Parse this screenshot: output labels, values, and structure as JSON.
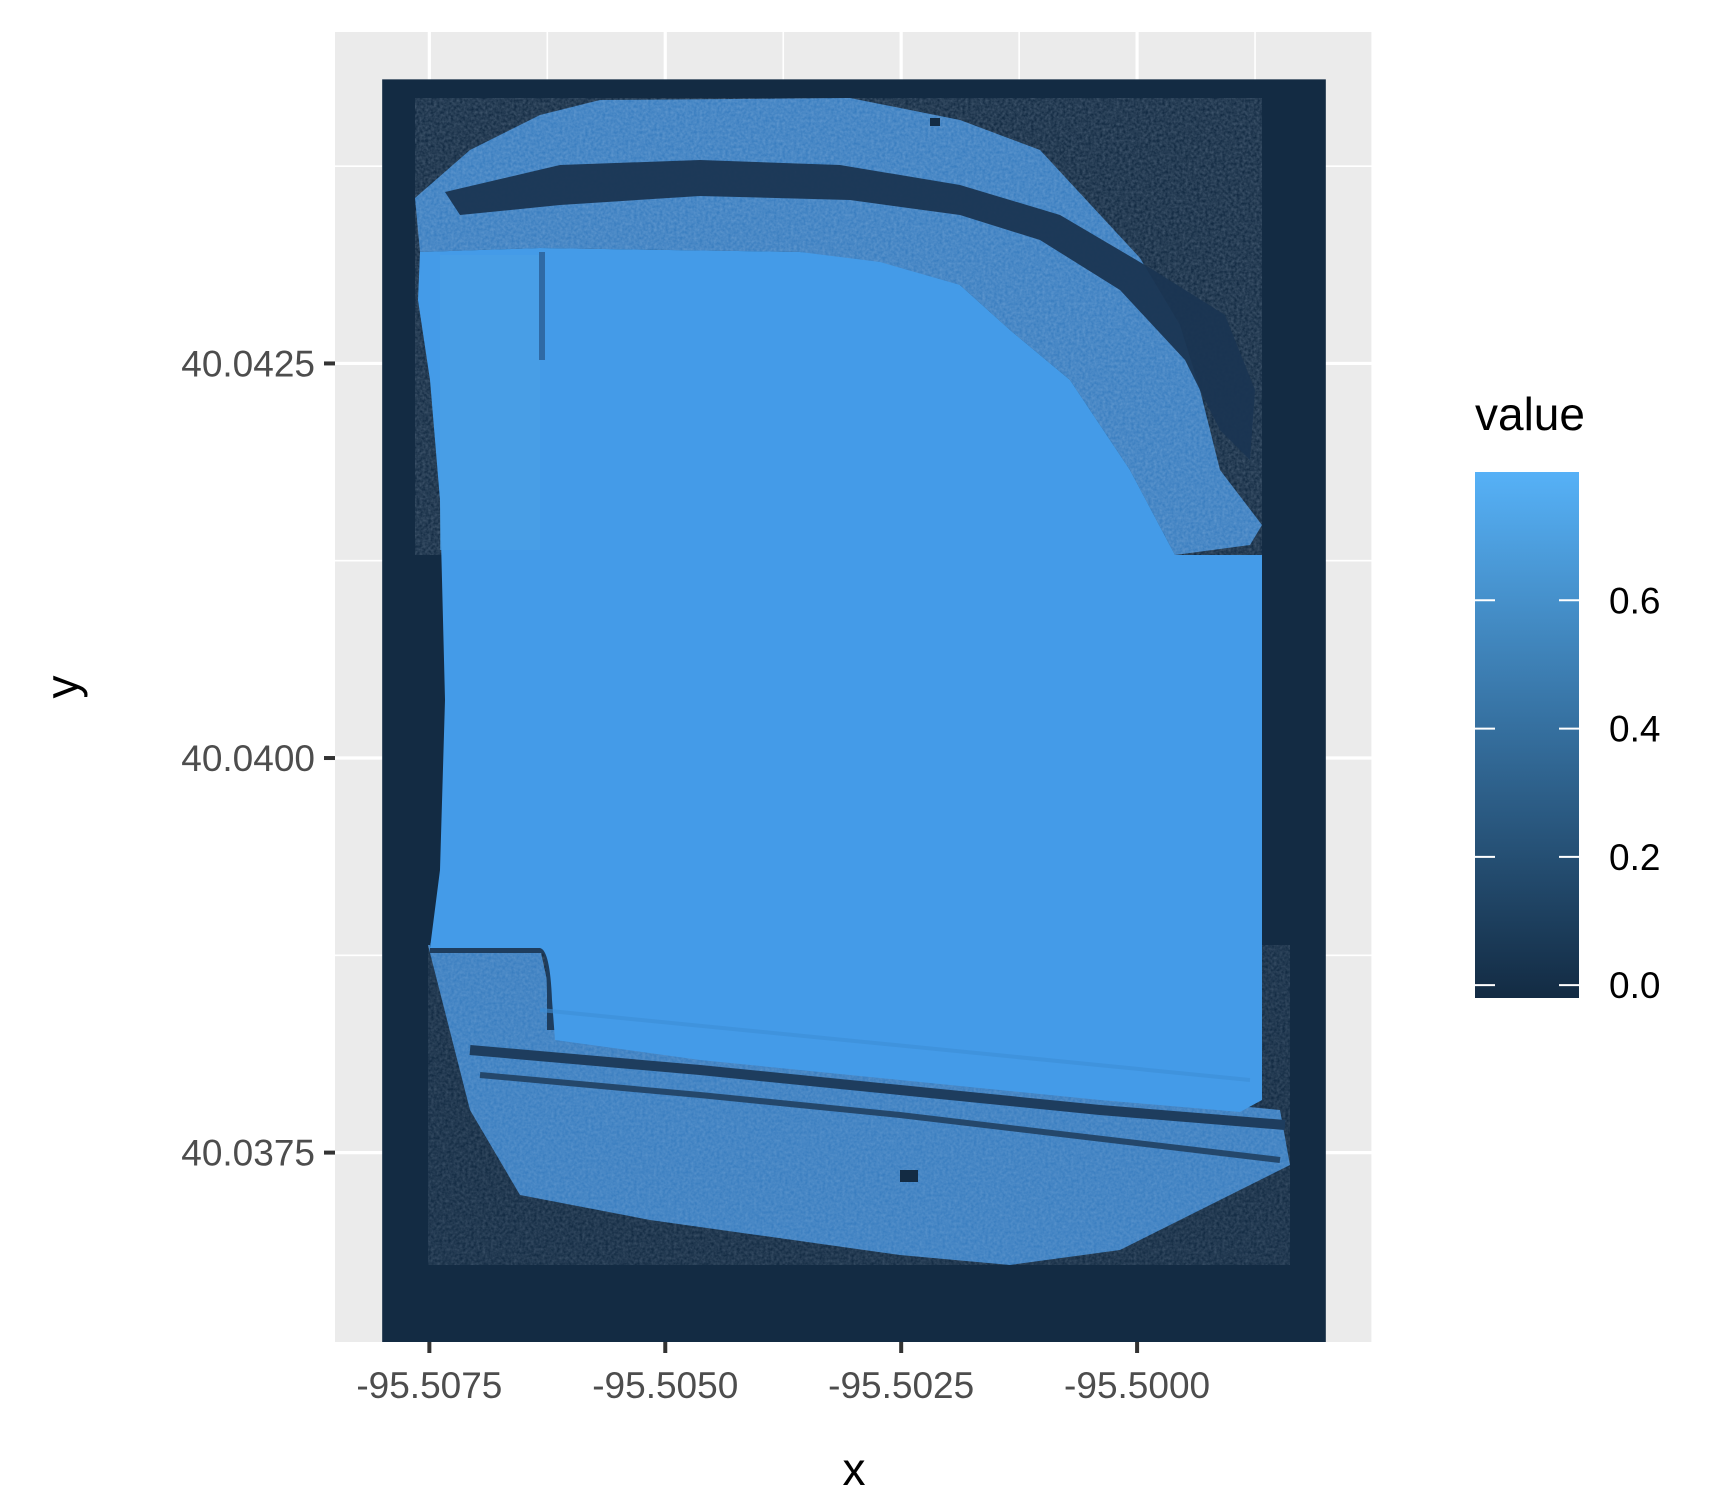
{
  "chart_data": {
    "type": "heatmap",
    "xlabel": "x",
    "ylabel": "y",
    "x_ticks": [
      "-95.5075",
      "-95.5050",
      "-95.5025",
      "-95.5000"
    ],
    "x_tick_values": [
      -95.5075,
      -95.505,
      -95.5025,
      -95.5
    ],
    "y_ticks": [
      "40.0375",
      "40.0400",
      "40.0425"
    ],
    "y_tick_values": [
      40.0375,
      40.04,
      40.0425
    ],
    "xlim": [
      -95.5085,
      -95.4975
    ],
    "ylim": [
      40.0363,
      40.0446
    ],
    "raster_extent": {
      "x": [
        -95.508,
        -95.498
      ],
      "y": [
        40.0361,
        40.0443
      ]
    },
    "legend": {
      "title": "value",
      "ticks": [
        "0.0",
        "0.2",
        "0.4",
        "0.6"
      ],
      "tick_values": [
        0.0,
        0.2,
        0.4,
        0.6
      ],
      "range": [
        -0.02,
        0.8
      ],
      "low_color": "#132b43",
      "high_color": "#56b1f7",
      "position": "right"
    },
    "grid": true,
    "panel_background": "#ebebeb",
    "features": {
      "field_value": 0.77,
      "outside_value": 0.0,
      "tree_line_value": 0.45,
      "road_value": 0.4,
      "creek_value": 0.1
    }
  }
}
